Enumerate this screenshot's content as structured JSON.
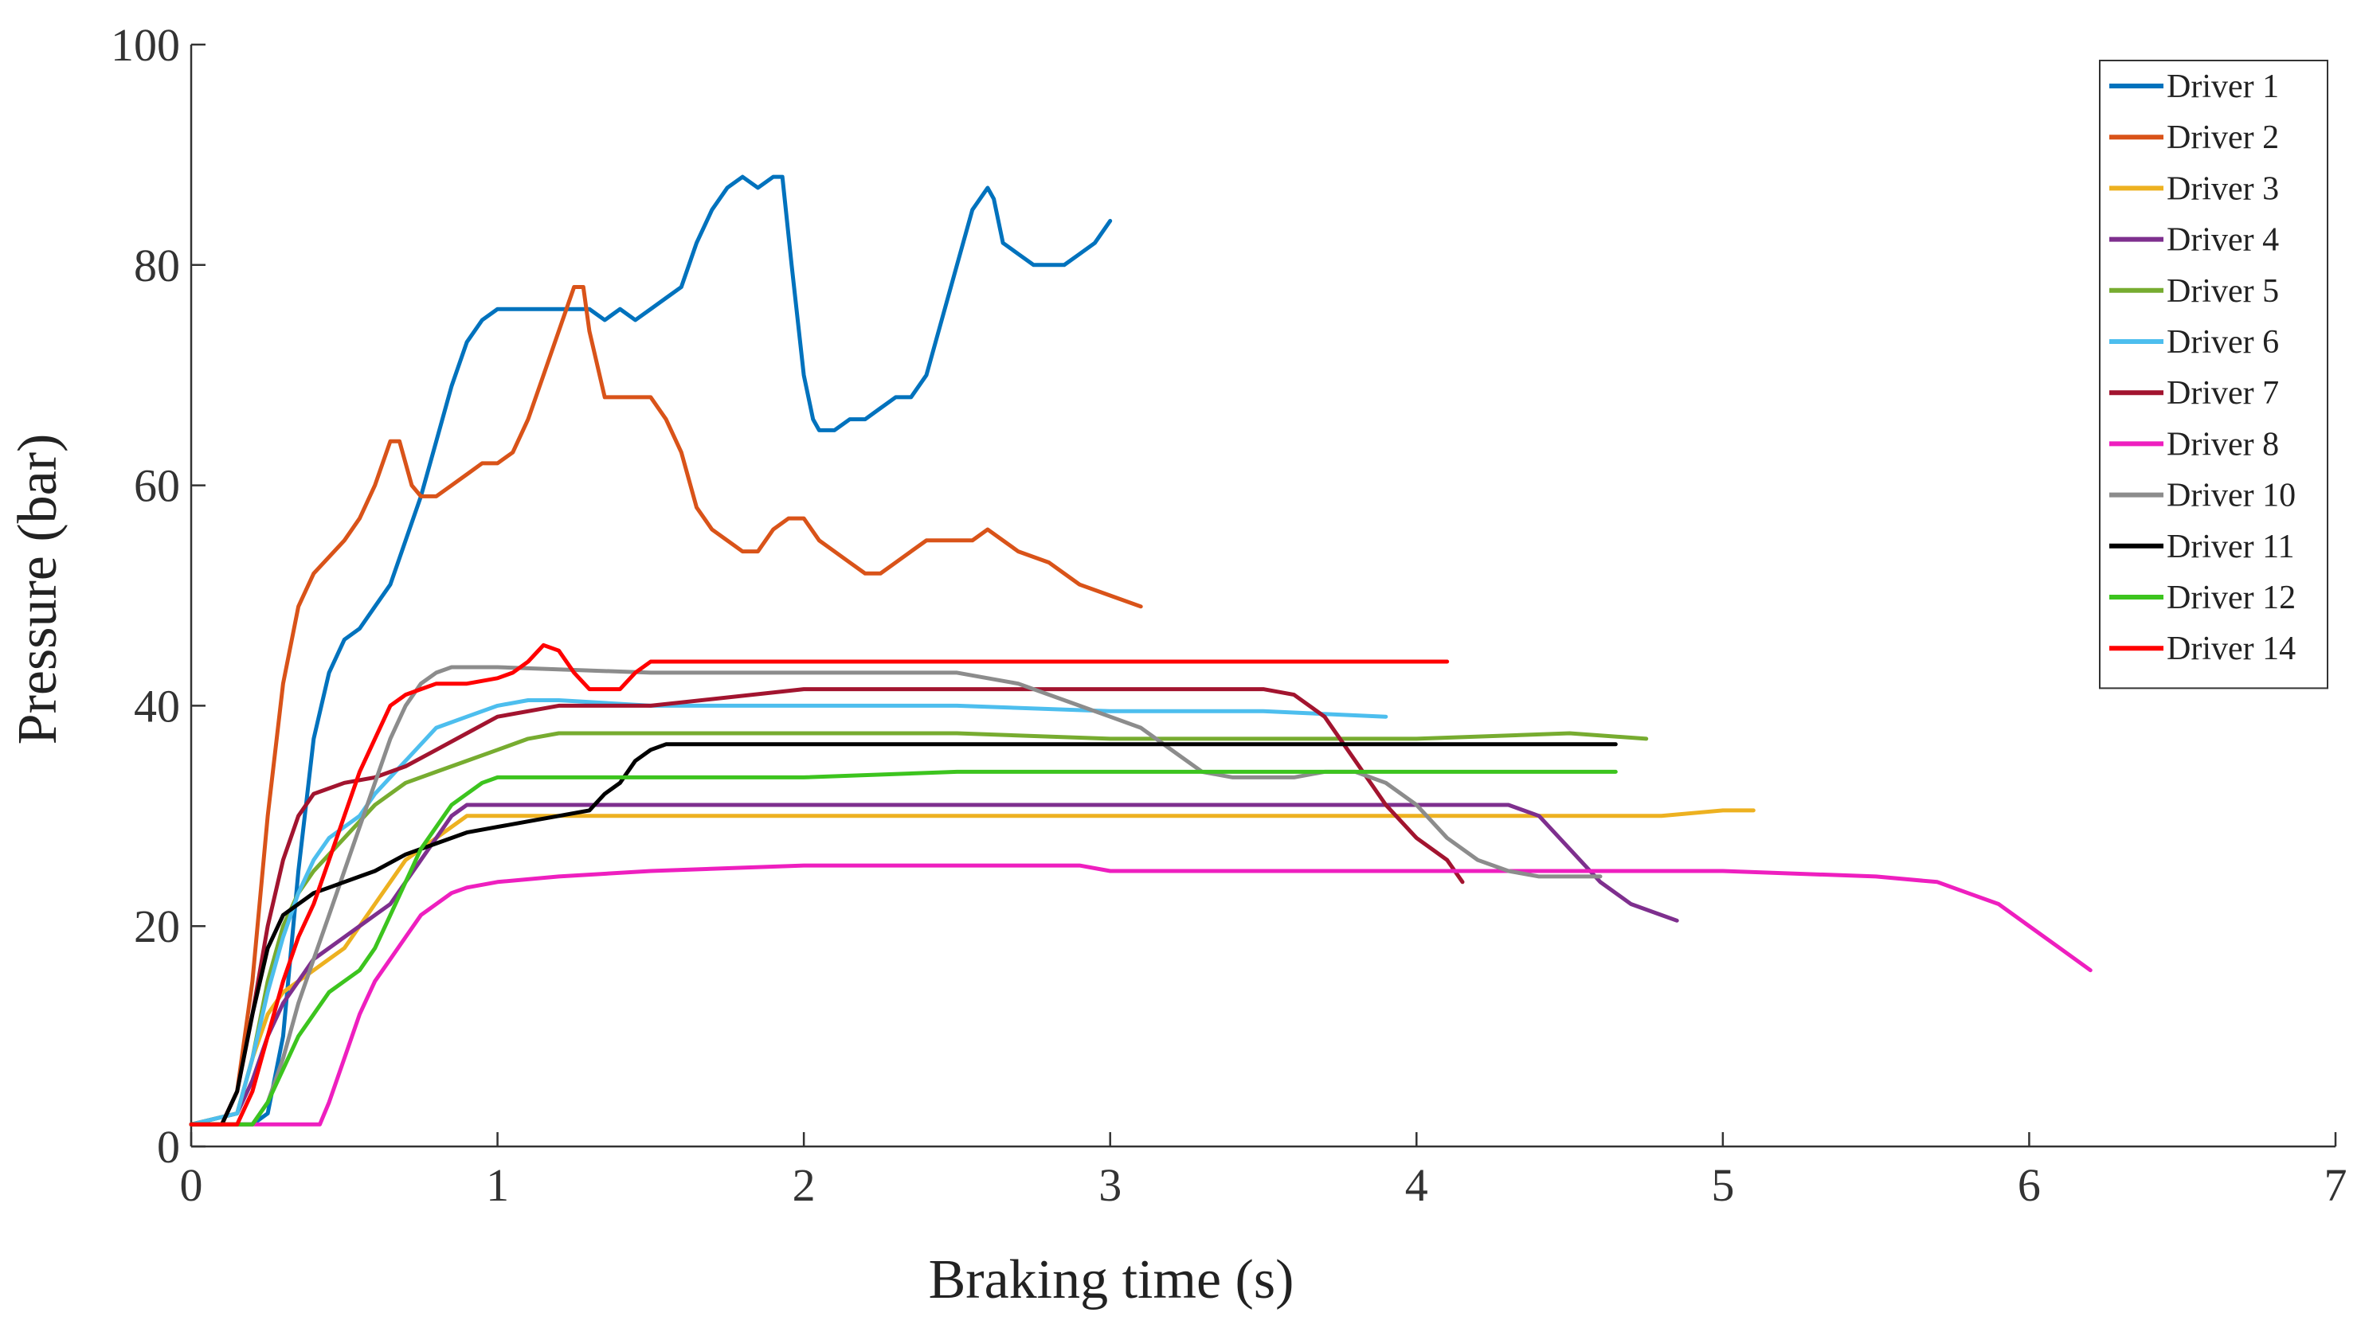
{
  "chart_data": {
    "type": "line",
    "title": "",
    "xlabel": "Braking time (s)",
    "ylabel": "Pressure (bar)",
    "xlim": [
      0,
      7
    ],
    "ylim": [
      0,
      100
    ],
    "xticks": [
      "0",
      "1",
      "2",
      "3",
      "4",
      "5",
      "6",
      "7"
    ],
    "yticks": [
      "0",
      "20",
      "40",
      "60",
      "80",
      "100"
    ],
    "legend_position": "top-right",
    "series": [
      {
        "name": "Driver 1",
        "color": "#0072BD",
        "x": [
          0,
          0.2,
          0.25,
          0.3,
          0.35,
          0.4,
          0.45,
          0.5,
          0.55,
          0.6,
          0.65,
          0.7,
          0.75,
          0.8,
          0.85,
          0.9,
          0.95,
          1.0,
          1.05,
          1.1,
          1.15,
          1.2,
          1.3,
          1.35,
          1.4,
          1.45,
          1.5,
          1.55,
          1.6,
          1.65,
          1.7,
          1.75,
          1.8,
          1.85,
          1.9,
          1.93,
          1.96,
          2.0,
          2.03,
          2.05,
          2.1,
          2.15,
          2.2,
          2.25,
          2.3,
          2.35,
          2.4,
          2.45,
          2.5,
          2.55,
          2.6,
          2.62,
          2.65,
          2.7,
          2.75,
          2.8,
          2.85,
          2.9,
          2.95,
          3.0
        ],
        "y": [
          2,
          2,
          3,
          10,
          25,
          37,
          43,
          46,
          47,
          49,
          51,
          55,
          59,
          64,
          69,
          73,
          75,
          76,
          76,
          76,
          76,
          76,
          76,
          75,
          76,
          75,
          76,
          77,
          78,
          82,
          85,
          87,
          88,
          87,
          88,
          88,
          80,
          70,
          66,
          65,
          65,
          66,
          66,
          67,
          68,
          68,
          70,
          75,
          80,
          85,
          87,
          86,
          82,
          81,
          80,
          80,
          80,
          81,
          82,
          84
        ]
      },
      {
        "name": "Driver 2",
        "color": "#D95319",
        "x": [
          0,
          0.1,
          0.15,
          0.2,
          0.25,
          0.3,
          0.35,
          0.4,
          0.5,
          0.55,
          0.6,
          0.65,
          0.68,
          0.72,
          0.75,
          0.8,
          0.85,
          0.9,
          0.95,
          1.0,
          1.05,
          1.1,
          1.15,
          1.2,
          1.25,
          1.28,
          1.3,
          1.35,
          1.4,
          1.45,
          1.5,
          1.55,
          1.6,
          1.65,
          1.7,
          1.75,
          1.8,
          1.85,
          1.9,
          1.95,
          2.0,
          2.05,
          2.1,
          2.15,
          2.2,
          2.25,
          2.3,
          2.35,
          2.4,
          2.45,
          2.5,
          2.55,
          2.6,
          2.65,
          2.7,
          2.8,
          2.9,
          3.0,
          3.1
        ],
        "y": [
          2,
          2,
          5,
          15,
          30,
          42,
          49,
          52,
          55,
          57,
          60,
          64,
          64,
          60,
          59,
          59,
          60,
          61,
          62,
          62,
          63,
          66,
          70,
          74,
          78,
          78,
          74,
          68,
          68,
          68,
          68,
          66,
          63,
          58,
          56,
          55,
          54,
          54,
          56,
          57,
          57,
          55,
          54,
          53,
          52,
          52,
          53,
          54,
          55,
          55,
          55,
          55,
          56,
          55,
          54,
          53,
          51,
          50,
          49
        ]
      },
      {
        "name": "Driver 3",
        "color": "#EDB120",
        "x": [
          0,
          0.15,
          0.2,
          0.25,
          0.3,
          0.35,
          0.4,
          0.45,
          0.5,
          0.55,
          0.6,
          0.65,
          0.7,
          0.75,
          0.8,
          0.85,
          0.9,
          1.0,
          1.5,
          2.0,
          2.5,
          3.0,
          3.5,
          4.0,
          4.5,
          4.8,
          5.0,
          5.1
        ],
        "y": [
          2,
          3,
          8,
          12,
          14,
          15,
          16,
          17,
          18,
          20,
          22,
          24,
          26,
          27,
          28,
          29,
          30,
          30,
          30,
          30,
          30,
          30,
          30,
          30,
          30,
          30,
          30.5,
          30.5
        ]
      },
      {
        "name": "Driver 4",
        "color": "#7E2F8E",
        "x": [
          0,
          0.15,
          0.2,
          0.25,
          0.3,
          0.35,
          0.4,
          0.5,
          0.55,
          0.6,
          0.65,
          0.7,
          0.75,
          0.8,
          0.85,
          0.9,
          1.0,
          1.5,
          2.0,
          2.5,
          3.0,
          3.5,
          4.0,
          4.3,
          4.4,
          4.5,
          4.6,
          4.7,
          4.8,
          4.85
        ],
        "y": [
          2,
          3,
          6,
          10,
          13,
          15,
          17,
          19,
          20,
          21,
          22,
          24,
          26,
          28,
          30,
          31,
          31,
          31,
          31,
          31,
          31,
          31,
          31,
          31,
          30,
          27,
          24,
          22,
          21,
          20.5
        ]
      },
      {
        "name": "Driver 5",
        "color": "#77AC30",
        "x": [
          0,
          0.15,
          0.2,
          0.25,
          0.3,
          0.35,
          0.4,
          0.5,
          0.6,
          0.7,
          0.8,
          0.9,
          1.0,
          1.1,
          1.2,
          1.3,
          1.4,
          1.5,
          2.0,
          2.5,
          3.0,
          3.5,
          4.0,
          4.5,
          4.75
        ],
        "y": [
          2,
          3,
          8,
          15,
          20,
          23,
          25,
          28,
          31,
          33,
          34,
          35,
          36,
          37,
          37.5,
          37.5,
          37.5,
          37.5,
          37.5,
          37.5,
          37,
          37,
          37,
          37.5,
          37
        ]
      },
      {
        "name": "Driver 6",
        "color": "#4DBEEE",
        "x": [
          0,
          0.15,
          0.2,
          0.25,
          0.3,
          0.35,
          0.4,
          0.45,
          0.5,
          0.55,
          0.6,
          0.7,
          0.8,
          0.9,
          1.0,
          1.1,
          1.2,
          1.5,
          2.0,
          2.5,
          3.0,
          3.5,
          3.9
        ],
        "y": [
          2,
          3,
          8,
          14,
          19,
          23,
          26,
          28,
          29,
          30,
          32,
          35,
          38,
          39,
          40,
          40.5,
          40.5,
          40,
          40,
          40,
          39.5,
          39.5,
          39
        ]
      },
      {
        "name": "Driver 7",
        "color": "#A2142F",
        "x": [
          0,
          0.1,
          0.15,
          0.2,
          0.25,
          0.3,
          0.35,
          0.4,
          0.5,
          0.6,
          0.7,
          0.8,
          0.9,
          1.0,
          1.2,
          1.5,
          2.0,
          2.5,
          3.0,
          3.5,
          3.6,
          3.7,
          3.8,
          3.9,
          4.0,
          4.1,
          4.15
        ],
        "y": [
          2,
          2,
          5,
          12,
          20,
          26,
          30,
          32,
          33,
          33.5,
          34.5,
          36,
          37.5,
          39,
          40,
          40,
          41.5,
          41.5,
          41.5,
          41.5,
          41,
          39,
          35,
          31,
          28,
          26,
          24
        ]
      },
      {
        "name": "Driver 8",
        "color": "#EE1FBF",
        "x": [
          0,
          0.42,
          0.45,
          0.5,
          0.55,
          0.6,
          0.65,
          0.7,
          0.75,
          0.8,
          0.85,
          0.9,
          1.0,
          1.2,
          1.5,
          2.0,
          2.5,
          2.9,
          3.0,
          3.5,
          4.0,
          4.5,
          5.0,
          5.5,
          5.7,
          5.8,
          5.9,
          6.0,
          6.1,
          6.2
        ],
        "y": [
          2,
          2,
          4,
          8,
          12,
          15,
          17,
          19,
          21,
          22,
          23,
          23.5,
          24,
          24.5,
          25,
          25.5,
          25.5,
          25.5,
          25,
          25,
          25,
          25,
          25,
          24.5,
          24,
          23,
          22,
          20,
          18,
          16
        ]
      },
      {
        "name": "Driver 10",
        "color": "#8C8C8C",
        "x": [
          0,
          0.2,
          0.25,
          0.3,
          0.35,
          0.4,
          0.45,
          0.5,
          0.55,
          0.6,
          0.65,
          0.7,
          0.75,
          0.8,
          0.85,
          0.9,
          1.0,
          1.5,
          2.0,
          2.5,
          2.7,
          2.9,
          3.0,
          3.1,
          3.2,
          3.3,
          3.4,
          3.5,
          3.6,
          3.7,
          3.8,
          3.9,
          4.0,
          4.1,
          4.2,
          4.3,
          4.4,
          4.5,
          4.6
        ],
        "y": [
          2,
          2,
          4,
          8,
          13,
          17,
          21,
          25,
          29,
          33,
          37,
          40,
          42,
          43,
          43.5,
          43.5,
          43.5,
          43,
          43,
          43,
          42,
          40,
          39,
          38,
          36,
          34,
          33.5,
          33.5,
          33.5,
          34,
          34,
          33,
          31,
          28,
          26,
          25,
          24.5,
          24.5,
          24.5
        ]
      },
      {
        "name": "Driver 11",
        "color": "#000000",
        "x": [
          0,
          0.1,
          0.15,
          0.2,
          0.25,
          0.3,
          0.35,
          0.4,
          0.45,
          0.5,
          0.55,
          0.6,
          0.7,
          0.8,
          0.9,
          1.0,
          1.1,
          1.2,
          1.3,
          1.35,
          1.4,
          1.45,
          1.5,
          1.55,
          1.6,
          1.7,
          2.0,
          2.5,
          3.0,
          3.5,
          4.0,
          4.5,
          4.65
        ],
        "y": [
          2,
          2,
          5,
          12,
          18,
          21,
          22,
          23,
          23.5,
          24,
          24.5,
          25,
          26.5,
          27.5,
          28.5,
          29,
          29.5,
          30,
          30.5,
          32,
          33,
          35,
          36,
          36.5,
          36.5,
          36.5,
          36.5,
          36.5,
          36.5,
          36.5,
          36.5,
          36.5,
          36.5
        ]
      },
      {
        "name": "Driver 12",
        "color": "#3CC41E",
        "x": [
          0,
          0.2,
          0.25,
          0.3,
          0.35,
          0.4,
          0.45,
          0.5,
          0.55,
          0.6,
          0.65,
          0.7,
          0.75,
          0.8,
          0.85,
          0.9,
          0.95,
          1.0,
          1.5,
          2.0,
          2.5,
          3.0,
          3.5,
          4.0,
          4.5,
          4.65
        ],
        "y": [
          2,
          2,
          4,
          7,
          10,
          12,
          14,
          15,
          16,
          18,
          21,
          24,
          27,
          29,
          31,
          32,
          33,
          33.5,
          33.5,
          33.5,
          34,
          34,
          34,
          34,
          34,
          34
        ]
      },
      {
        "name": "Driver 14",
        "color": "#FF0000",
        "x": [
          0,
          0.15,
          0.2,
          0.25,
          0.3,
          0.35,
          0.4,
          0.45,
          0.5,
          0.55,
          0.6,
          0.65,
          0.7,
          0.75,
          0.8,
          0.9,
          1.0,
          1.05,
          1.1,
          1.15,
          1.2,
          1.25,
          1.3,
          1.35,
          1.4,
          1.45,
          1.5,
          1.55,
          1.6,
          2.0,
          2.5,
          3.0,
          3.5,
          4.0,
          4.1
        ],
        "y": [
          2,
          2,
          5,
          10,
          15,
          19,
          22,
          26,
          30,
          34,
          37,
          40,
          41,
          41.5,
          42,
          42,
          42.5,
          43,
          44,
          45.5,
          45,
          43,
          41.5,
          41.5,
          41.5,
          43,
          44,
          44,
          44,
          44,
          44,
          44,
          44,
          44,
          44
        ]
      }
    ]
  }
}
